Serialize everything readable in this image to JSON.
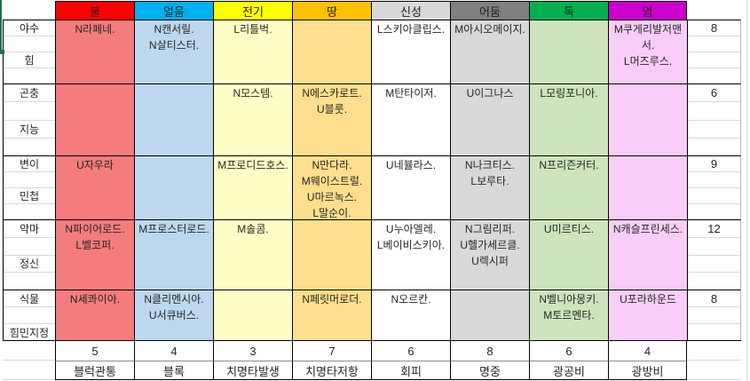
{
  "ui": {
    "selection_color": "#1E7145",
    "grid_line_color": "#d9d9d9",
    "border_color": "#000000"
  },
  "columns": [
    {
      "label": "불",
      "header_bg": "#FF0000",
      "body_bg": "#F47C7C"
    },
    {
      "label": "얼음",
      "header_bg": "#00B0F0",
      "body_bg": "#BDD7EE"
    },
    {
      "label": "전기",
      "header_bg": "#FFFF00",
      "body_bg": "#FFFFC5"
    },
    {
      "label": "땅",
      "header_bg": "#FFC000",
      "body_bg": "#FFDF8D"
    },
    {
      "label": "신성",
      "header_bg": "#D9D9D9",
      "body_bg": "#FFFFFF"
    },
    {
      "label": "어둠",
      "header_bg": "#808080",
      "body_bg": "#D9D9D9"
    },
    {
      "label": "독",
      "header_bg": "#00B050",
      "body_bg": "#CDE4BC"
    },
    {
      "label": "염",
      "header_bg": "#CC00CC",
      "body_bg": "#F8CEF8"
    }
  ],
  "row_groups": [
    {
      "labels": [
        "야수",
        "힘"
      ],
      "value": "8",
      "cells": [
        "N라페네.",
        "N캔서릴.\nN살티스터.",
        "L리틀벅.",
        "",
        "L스키아클립스.",
        "M아시오메이지.",
        "",
        "M쿠게리발저맨서.\nL머즈루스."
      ]
    },
    {
      "labels": [
        "곤충",
        "지능"
      ],
      "value": "6",
      "cells": [
        "",
        "",
        "N모스템.",
        "N에스카로트.\nU블룻.",
        "M탄타이저.",
        "U이그나스",
        "L모링포니아.",
        ""
      ]
    },
    {
      "labels": [
        "변이",
        "민첩"
      ],
      "value": "9",
      "cells": [
        "U자우라",
        "",
        "M프로디드호스.",
        "N만다라.\nM웨이스트럴.\nU마르녹스.\nL말순이.",
        "U네뷸라스.",
        "N나크티스.\nL보루타.",
        "N프리즌커터.",
        ""
      ]
    },
    {
      "labels": [
        "악마",
        "정신"
      ],
      "value": "12",
      "cells": [
        "N파이어로드.\nL벨코퍼.",
        "M프로스터로드.",
        "M솔콤.",
        "",
        "U누아엘레.\nL베이비스키아.",
        "N그림리퍼.\nU헬가세르클.\nU렉시퍼",
        "U미르티스.",
        "N캐슬프린세스."
      ]
    },
    {
      "labels": [
        "식물",
        "힘민지정"
      ],
      "value": "8",
      "cells": [
        "N세콰이아.",
        "N클리멘시아.\nU서큐버스.",
        "",
        "N페릿머로더.",
        "N오르칸.",
        "",
        "N벨니아몽키.\nM토르멘타.",
        "U포라하운드"
      ]
    }
  ],
  "bottom": {
    "values": [
      "5",
      "4",
      "3",
      "7",
      "6",
      "8",
      "6",
      "4"
    ],
    "labels": [
      "블럭관통",
      "블록",
      "치명타발생",
      "치명타저항",
      "회피",
      "명중",
      "광공비",
      "광방비"
    ]
  }
}
